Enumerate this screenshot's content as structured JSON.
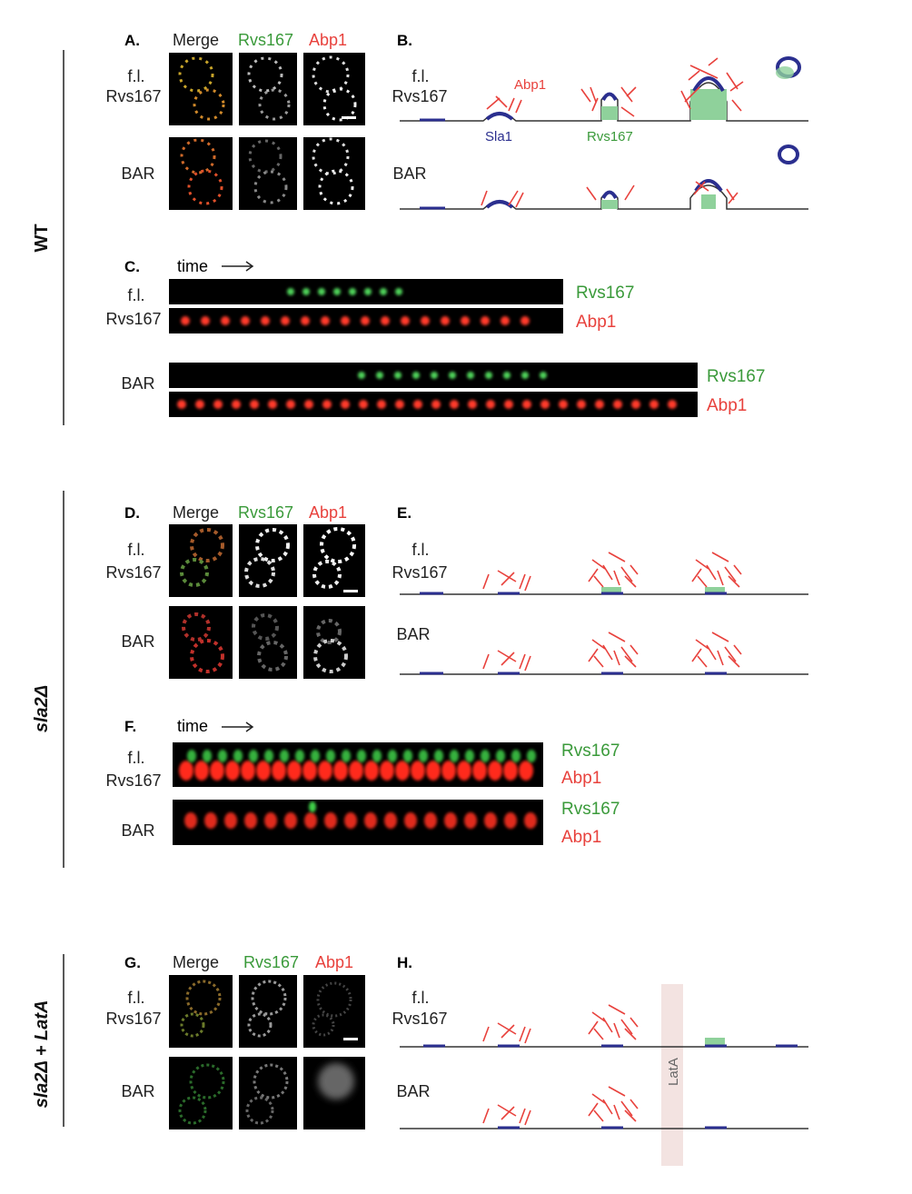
{
  "sections": {
    "wt": "WT",
    "sla2": "sla2Δ",
    "sla2_lata": "sla2Δ + LatA"
  },
  "panels": {
    "A": "A.",
    "B": "B.",
    "C": "C.",
    "D": "D.",
    "E": "E.",
    "F": "F.",
    "G": "G.",
    "H": "H."
  },
  "columns": {
    "merge": "Merge",
    "rvs167": "Rvs167",
    "abp1": "Abp1"
  },
  "rows": {
    "fl_line1": "f.l.",
    "fl_line2": "Rvs167",
    "bar": "BAR"
  },
  "schematic_labels": {
    "abp1": "Abp1",
    "sla1": "Sla1",
    "rvs167": "Rvs167",
    "lata": "LatA"
  },
  "kymo": {
    "time": "time",
    "rvs167": "Rvs167",
    "abp1": "Abp1"
  },
  "colors": {
    "green": "#3a9a3a",
    "red": "#e8413c",
    "blue": "#2b2f8f",
    "membrane_green": "#8fd19b",
    "lata_band": "#f3e3e1"
  }
}
